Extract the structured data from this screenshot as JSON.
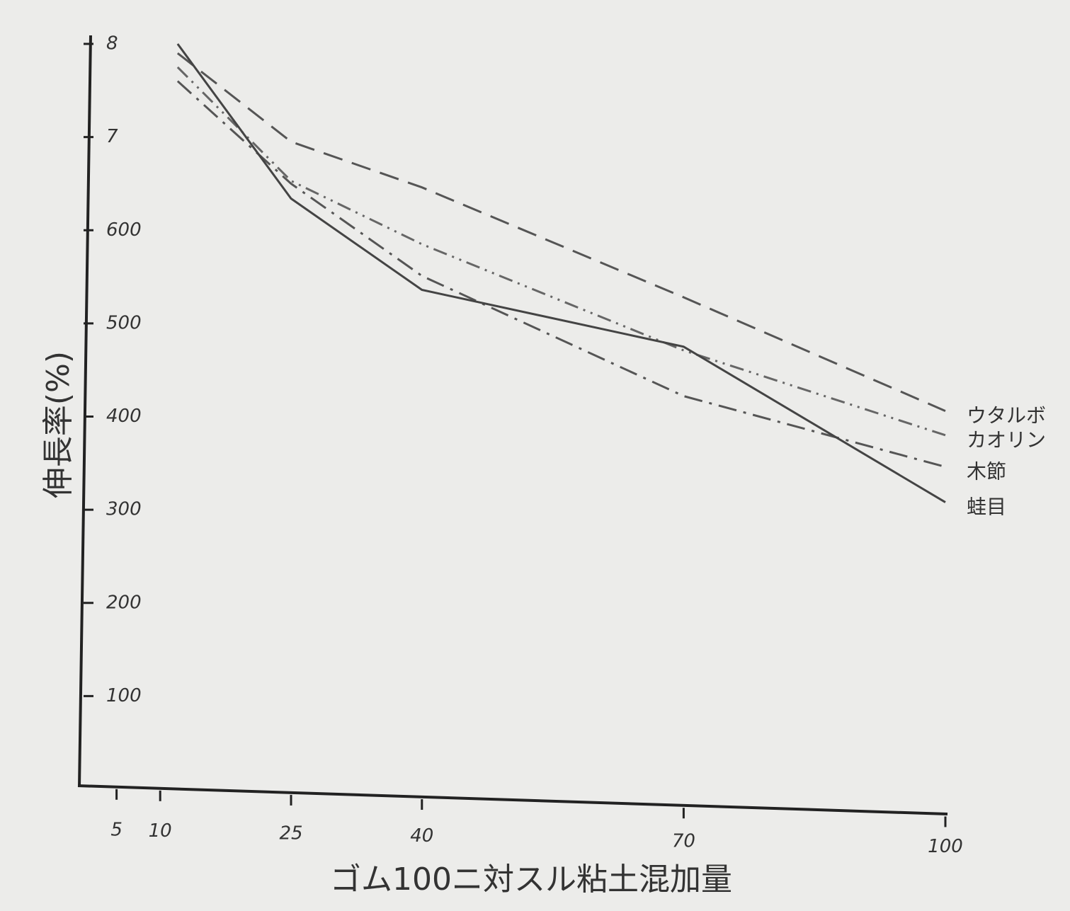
{
  "chart_data": {
    "type": "line",
    "x_label": "ゴム100ニ対スル粘土混加量",
    "y_label": "伸長率(%)",
    "xlim": [
      0,
      100
    ],
    "xticks": [
      5,
      10,
      25,
      40,
      70,
      100
    ],
    "ylim": [
      0,
      800
    ],
    "yticks": [
      100,
      200,
      300,
      400,
      500,
      600,
      {
        "value": 700,
        "label": "7"
      },
      {
        "value": 800,
        "label": "8"
      }
    ],
    "x": [
      12,
      25,
      40,
      70,
      100
    ],
    "series": [
      {
        "name": "ウタルボ",
        "color": "#555",
        "linestyle": "dashed",
        "values": [
          790,
          695,
          646,
          528,
          406
        ]
      },
      {
        "name": "カオリン",
        "color": "#666",
        "linestyle": "dashdotdot",
        "values": [
          775,
          653,
          585,
          471,
          380
        ]
      },
      {
        "name": "木節",
        "color": "#555",
        "linestyle": "dashdot",
        "values": [
          760,
          650,
          551,
          422,
          346
        ]
      },
      {
        "name": "蛙目",
        "color": "#444",
        "linestyle": "solid",
        "values": [
          800,
          634,
          536,
          475,
          308
        ]
      }
    ]
  }
}
